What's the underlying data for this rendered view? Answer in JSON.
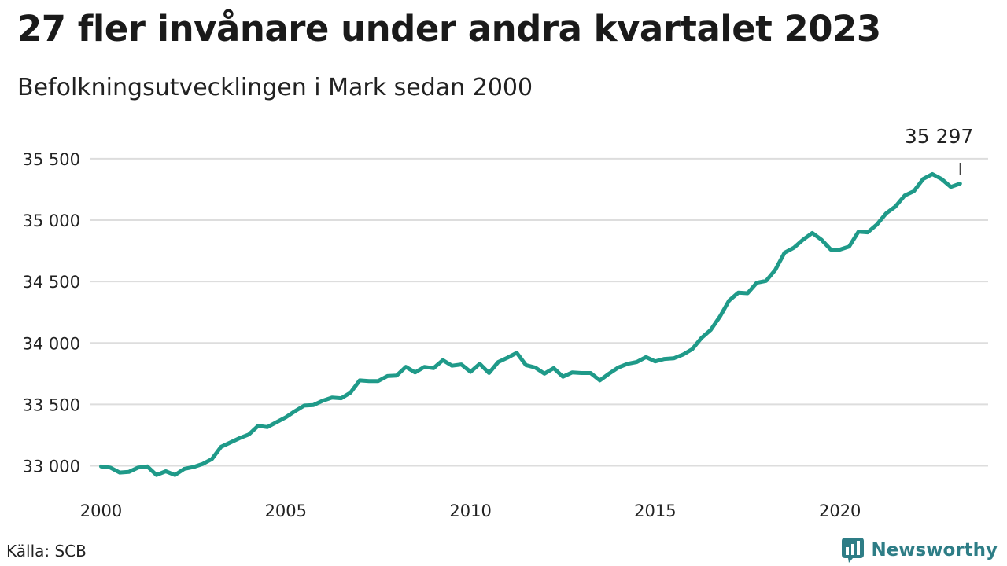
{
  "header": {
    "title": "27 fler invånare under andra kvartalet 2023",
    "subtitle": "Befolkningsutvecklingen i Mark sedan 2000"
  },
  "footer": {
    "source": "Källa: SCB",
    "brand": "Newsworthy",
    "brand_icon": "bar-chart-logo-icon"
  },
  "colors": {
    "line": "#1f9a89",
    "grid": "#dddddd",
    "brand": "#2e7d86"
  },
  "chart_data": {
    "type": "line",
    "title": "27 fler invånare under andra kvartalet 2023",
    "subtitle": "Befolkningsutvecklingen i Mark sedan 2000",
    "x_start": "2000-Q1",
    "frequency": "quarterly",
    "xlim": [
      2000,
      2023.5
    ],
    "ylim": [
      32900,
      35550
    ],
    "y_ticks": [
      33000,
      33500,
      34000,
      34500,
      35000,
      35500
    ],
    "y_tick_labels": [
      "33 000",
      "33 500",
      "34 000",
      "34 500",
      "35 000",
      "35 500"
    ],
    "x_ticks": [
      2000,
      2005,
      2010,
      2015,
      2020
    ],
    "x_tick_labels": [
      "2000",
      "2005",
      "2010",
      "2015",
      "2020"
    ],
    "grid": true,
    "last_value_label": "35 297",
    "series": [
      {
        "values": [
          32995,
          32985,
          32945,
          32950,
          32985,
          32995,
          32925,
          32955,
          32925,
          32975,
          32990,
          33015,
          33055,
          33155,
          33190,
          33225,
          33255,
          33325,
          33315,
          33355,
          33395,
          33445,
          33490,
          33495,
          33530,
          33555,
          33550,
          33595,
          33695,
          33690,
          33690,
          33730,
          33735,
          33805,
          33760,
          33805,
          33795,
          33860,
          33815,
          33825,
          33765,
          33830,
          33755,
          33845,
          33880,
          33920,
          33820,
          33800,
          33750,
          33795,
          33725,
          33760,
          33755,
          33755,
          33695,
          33750,
          33800,
          33830,
          33845,
          33885,
          33850,
          33870,
          33875,
          33905,
          33950,
          34040,
          34105,
          34215,
          34345,
          34410,
          34405,
          34490,
          34505,
          34595,
          34735,
          34775,
          34840,
          34895,
          34840,
          34760,
          34760,
          34785,
          34905,
          34900,
          34965,
          35055,
          35110,
          35200,
          35235,
          35335,
          35375,
          35335,
          35270,
          35297
        ]
      }
    ]
  }
}
